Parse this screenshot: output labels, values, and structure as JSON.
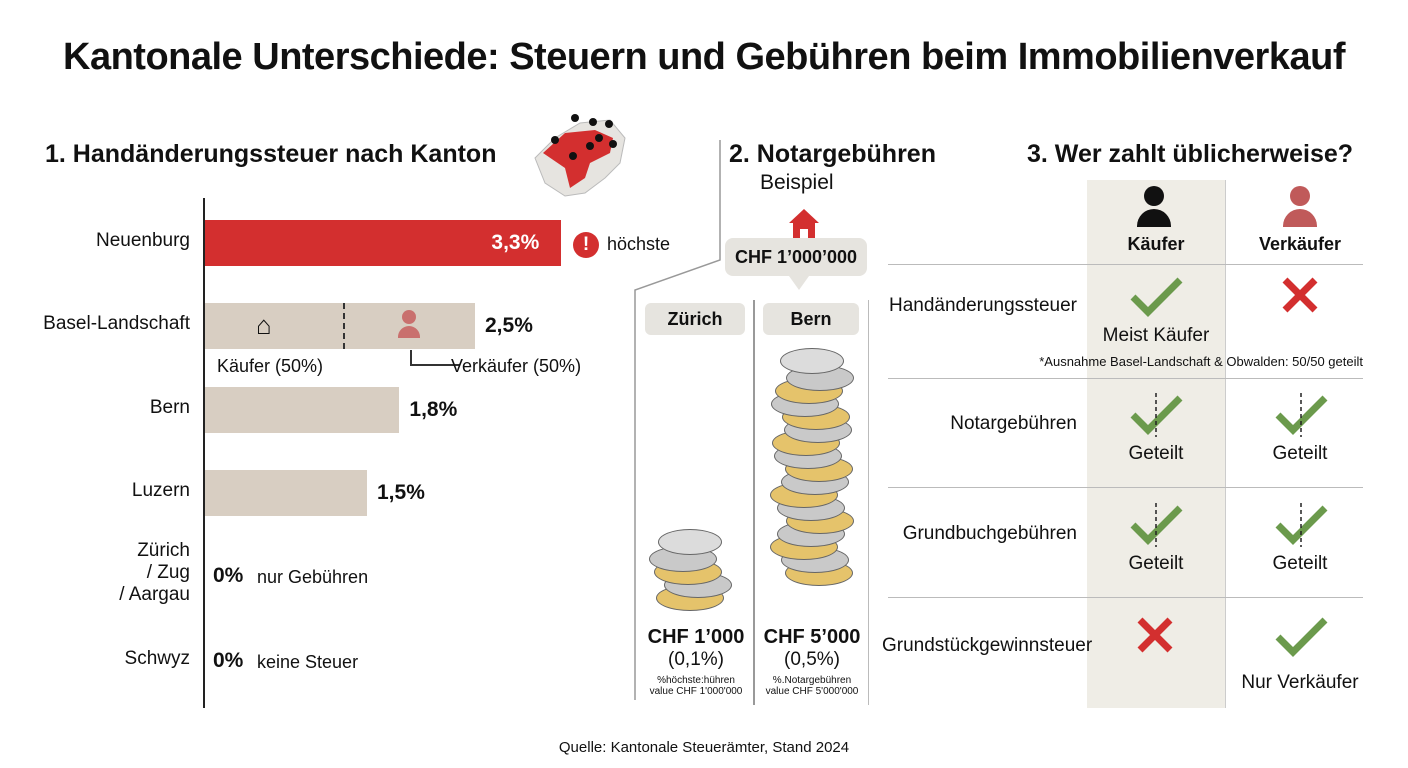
{
  "title": "Kantonale Unterschiede: Steuern und Gebühren beim Immobilienverkauf",
  "section1": {
    "heading": "1. Handänderungssteuer nach Kanton",
    "highest_note": "höchste",
    "split_buyer": "Käufer (50%)",
    "split_seller": "Verkäufer (50%)",
    "note_zero1": "nur Gebühren",
    "note_zero2": "keine Steuer"
  },
  "section2": {
    "heading": "2. Notargebühren",
    "subheading": "Beispiel",
    "house_price": "CHF 1’000’000",
    "columns": [
      {
        "name": "Zürich",
        "amount": "CHF 1’000",
        "pct": "(0,1%)",
        "foot1": "%höchste:hühren",
        "foot2": "value CHF 1'000'000"
      },
      {
        "name": "Bern",
        "amount": "CHF 5’000",
        "pct": "(0,5%)",
        "foot1": "%.Notargebühren",
        "foot2": "value CHF 5'000'000"
      }
    ]
  },
  "section3": {
    "heading": "3. Wer zahlt üblicherweise?",
    "col_buyer": "Käufer",
    "col_seller": "Verkäufer",
    "rows": [
      {
        "label": "Handänderungssteuer",
        "buyer": "check",
        "buyer_text": "Meist Käufer",
        "seller": "cross",
        "seller_text": "",
        "footnote": "*Ausnahme Basel-Landschaft & Obwalden: 50/50 geteilt"
      },
      {
        "label": "Notargebühren",
        "buyer": "half-check",
        "buyer_text": "Geteilt",
        "seller": "half-check",
        "seller_text": "Geteilt"
      },
      {
        "label": "Grundbuchgebühren",
        "buyer": "half-check",
        "buyer_text": "Geteilt",
        "seller": "half-check",
        "seller_text": "Geteilt"
      },
      {
        "label": "Grundstückgewinnsteuer",
        "buyer": "cross",
        "buyer_text": "",
        "seller": "check",
        "seller_text": "Nur Verkäufer"
      }
    ]
  },
  "source": "Quelle: Kantonale Steuerämter, Stand 2024",
  "colors": {
    "highlight": "#d32f2f",
    "bar": "#d8cec2",
    "check": "#6b9a4c",
    "cross": "#d32f2f"
  },
  "chart_data": {
    "type": "bar",
    "orientation": "horizontal",
    "title": "1. Handänderungssteuer nach Kanton",
    "categories": [
      "Neuenburg",
      "Basel-Landschaft",
      "Bern",
      "Luzern",
      "Zürich / Zug / Aargau",
      "Schwyz"
    ],
    "values": [
      3.3,
      2.5,
      1.8,
      1.5,
      0,
      0
    ],
    "labels": [
      "3,3%",
      "2,5%",
      "1,8%",
      "1,5%",
      "0%",
      "0%"
    ],
    "unit": "%",
    "highlight": "Neuenburg"
  }
}
